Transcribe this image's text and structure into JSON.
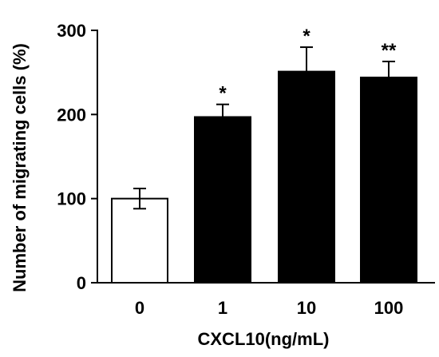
{
  "chart_data": {
    "type": "bar",
    "title": "",
    "xlabel": "CXCL10(ng/mL)",
    "ylabel": "Number of migrating cells (%)",
    "ylim": [
      0,
      300
    ],
    "yticks": [
      "0",
      "100",
      "200",
      "300"
    ],
    "categories": [
      "0",
      "1",
      "10",
      "100"
    ],
    "values": [
      100,
      197,
      251,
      244
    ],
    "errors": [
      12,
      15,
      29,
      19
    ],
    "bar_colors": [
      "#ffffff",
      "#000000",
      "#000000",
      "#000000"
    ],
    "significance": [
      "",
      "*",
      "*",
      "**"
    ],
    "grid": false,
    "legend": "none"
  }
}
